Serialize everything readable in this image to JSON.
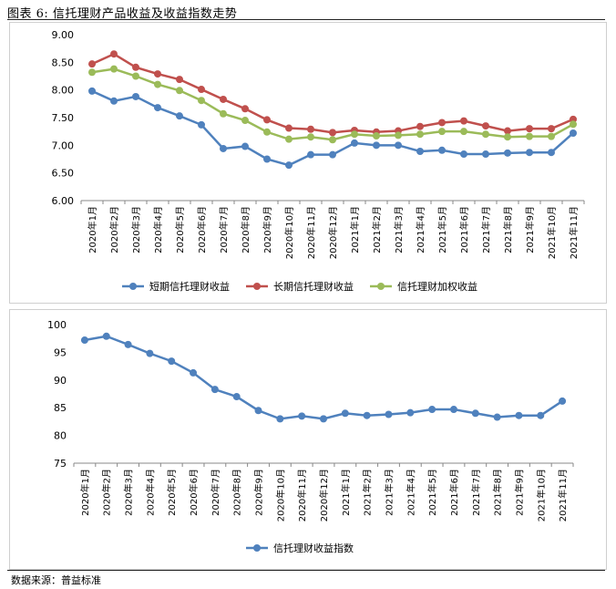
{
  "figure": {
    "title": "图表 6: 信托理财产品收益及收益指数走势",
    "source": "数据来源：普益标准"
  },
  "chart_data": [
    {
      "type": "line",
      "categories": [
        "2020年1月",
        "2020年2月",
        "2020年3月",
        "2020年4月",
        "2020年5月",
        "2020年6月",
        "2020年7月",
        "2020年8月",
        "2020年9月",
        "2020年10月",
        "2020年11月",
        "2020年12月",
        "2021年1月",
        "2021年2月",
        "2021年3月",
        "2021年4月",
        "2021年5月",
        "2021年6月",
        "2021年7月",
        "2021年8月",
        "2021年9月",
        "2021年10月",
        "2021年11月"
      ],
      "ylim": [
        6.0,
        9.0
      ],
      "yticks": [
        "6.00",
        "6.50",
        "7.00",
        "7.50",
        "8.00",
        "8.50",
        "9.00"
      ],
      "series": [
        {
          "name": "短期信托理财收益",
          "color": "#4f81bd",
          "values": [
            7.98,
            7.8,
            7.88,
            7.68,
            7.53,
            7.37,
            6.94,
            6.98,
            6.75,
            6.64,
            6.83,
            6.83,
            7.04,
            7.0,
            7.0,
            6.89,
            6.91,
            6.84,
            6.84,
            6.86,
            6.87,
            6.87,
            7.22
          ]
        },
        {
          "name": "长期信托理财收益",
          "color": "#c0504d",
          "values": [
            8.47,
            8.65,
            8.41,
            8.29,
            8.19,
            8.01,
            7.83,
            7.66,
            7.46,
            7.31,
            7.29,
            7.23,
            7.27,
            7.24,
            7.26,
            7.34,
            7.41,
            7.44,
            7.35,
            7.26,
            7.3,
            7.3,
            7.47
          ]
        },
        {
          "name": "信托理财加权收益",
          "color": "#9bbb59",
          "values": [
            8.32,
            8.38,
            8.25,
            8.1,
            7.99,
            7.81,
            7.57,
            7.45,
            7.24,
            7.11,
            7.15,
            7.1,
            7.2,
            7.17,
            7.18,
            7.2,
            7.25,
            7.25,
            7.2,
            7.15,
            7.16,
            7.16,
            7.38
          ]
        }
      ]
    },
    {
      "type": "line",
      "categories": [
        "2020年1月",
        "2020年2月",
        "2020年3月",
        "2020年4月",
        "2020年5月",
        "2020年6月",
        "2020年7月",
        "2020年8月",
        "2020年9月",
        "2020年10月",
        "2020年11月",
        "2020年12月",
        "2021年1月",
        "2021年2月",
        "2021年3月",
        "2021年4月",
        "2021年5月",
        "2021年6月",
        "2021年7月",
        "2021年8月",
        "2021年9月",
        "2021年10月",
        "2021年11月"
      ],
      "ylim": [
        75,
        100
      ],
      "yticks": [
        "75",
        "80",
        "85",
        "90",
        "95",
        "100"
      ],
      "series": [
        {
          "name": "信托理财收益指数",
          "color": "#4f81bd",
          "values": [
            97.2,
            97.9,
            96.4,
            94.8,
            93.4,
            91.3,
            88.3,
            87.0,
            84.5,
            83.0,
            83.5,
            83.0,
            84.0,
            83.6,
            83.8,
            84.1,
            84.7,
            84.7,
            84.0,
            83.3,
            83.6,
            83.6,
            86.2
          ]
        }
      ]
    }
  ]
}
